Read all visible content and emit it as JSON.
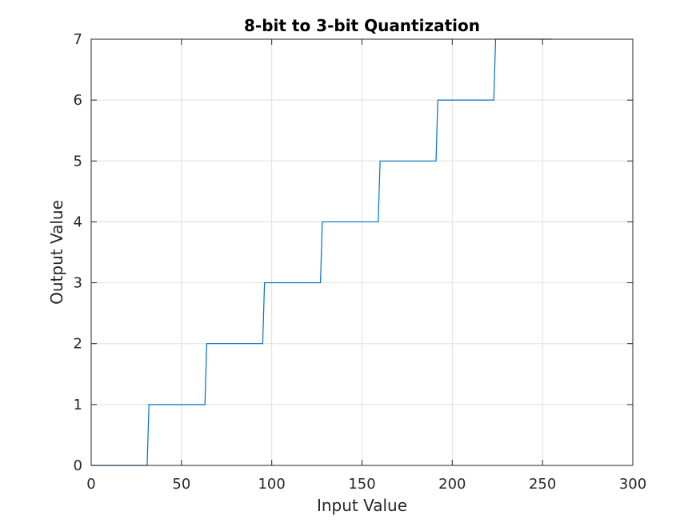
{
  "chart_data": {
    "type": "line",
    "title": "8-bit to 3-bit Quantization",
    "xlabel": "Input Value",
    "ylabel": "Output Value",
    "xlim": [
      0,
      300
    ],
    "ylim": [
      0,
      7
    ],
    "xticks": [
      0,
      50,
      100,
      150,
      200,
      250,
      300
    ],
    "yticks": [
      0,
      1,
      2,
      3,
      4,
      5,
      6,
      7
    ],
    "grid": true,
    "legend": "none",
    "series": [
      {
        "color": "#0072bd",
        "x": [
          0,
          31,
          32,
          63,
          64,
          95,
          96,
          127,
          128,
          159,
          160,
          191,
          192,
          223,
          224,
          255
        ],
        "y": [
          0,
          0,
          1,
          1,
          2,
          2,
          3,
          3,
          4,
          4,
          5,
          5,
          6,
          6,
          7,
          7
        ]
      }
    ]
  }
}
